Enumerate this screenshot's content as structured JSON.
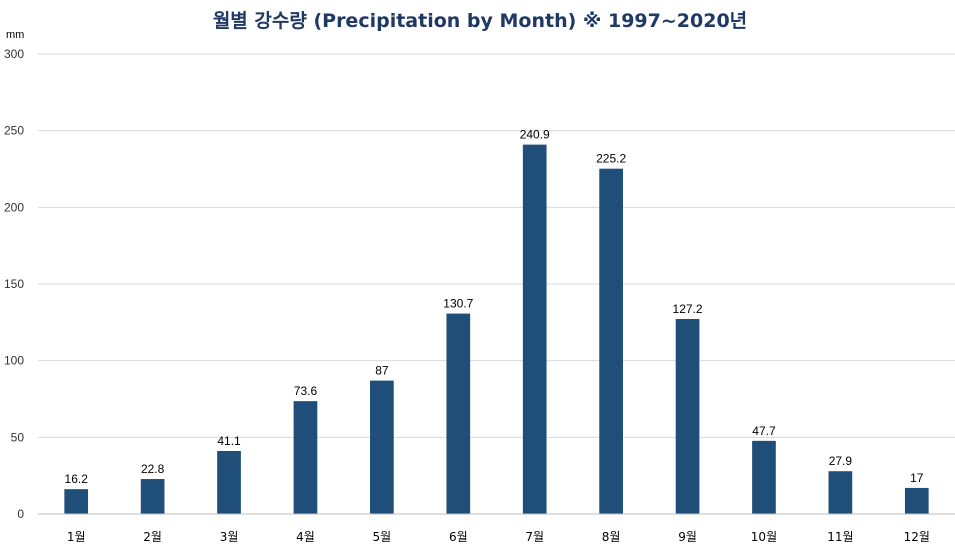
{
  "chart_data": {
    "type": "bar",
    "title": "월별 강수량 (Precipitation by Month)  ※ 1997~2020년",
    "unit_label": "mm",
    "categories": [
      "1월",
      "2월",
      "3월",
      "4월",
      "5월",
      "6월",
      "7월",
      "8월",
      "9월",
      "10월",
      "11월",
      "12월"
    ],
    "values": [
      16.2,
      22.8,
      41.1,
      73.6,
      87,
      130.7,
      240.9,
      225.2,
      127.2,
      47.7,
      27.9,
      17
    ],
    "value_labels": [
      "16.2",
      "22.8",
      "41.1",
      "73.6",
      "87",
      "130.7",
      "240.9",
      "225.2",
      "127.2",
      "47.7",
      "27.9",
      "17"
    ],
    "ylim": [
      0,
      300
    ],
    "yticks": [
      0,
      50,
      100,
      150,
      200,
      250,
      300
    ],
    "ytick_labels": [
      "0",
      "50",
      "100",
      "150",
      "200",
      "250",
      "300"
    ],
    "grid": true,
    "legend": "none",
    "bar_color": "#1f4e79",
    "title_color": "#1f3864"
  }
}
